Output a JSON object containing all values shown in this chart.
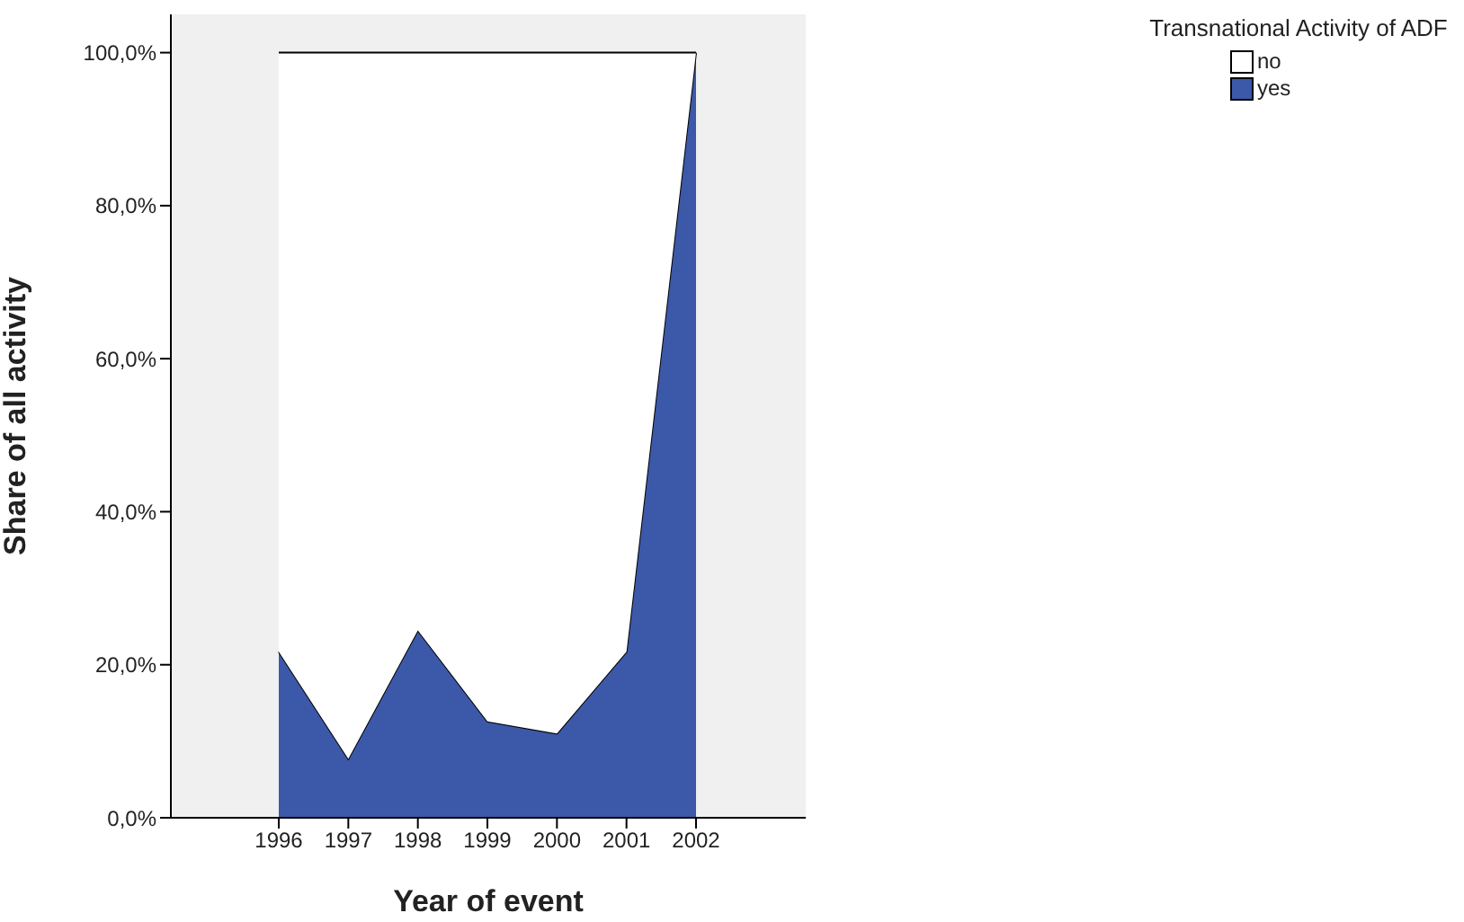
{
  "chart_data": {
    "type": "area",
    "stacked": true,
    "xlabel": "Year of event",
    "ylabel": "Share of all activity",
    "legend_title": "Transnational Activity of ADF",
    "categories": [
      "1996",
      "1997",
      "1998",
      "1999",
      "2000",
      "2001",
      "2002"
    ],
    "series": [
      {
        "name": "yes",
        "color": "#3c58a8",
        "values": [
          21.7,
          7.7,
          24.5,
          12.6,
          11.0,
          21.7,
          100
        ]
      },
      {
        "name": "no",
        "color": "#ffffff",
        "values": [
          78.3,
          92.3,
          75.5,
          87.4,
          89.0,
          78.3,
          0
        ]
      }
    ],
    "ylim": [
      0,
      105
    ],
    "yticks": [
      {
        "value": 0,
        "label": "0,0%"
      },
      {
        "value": 20,
        "label": "20,0%"
      },
      {
        "value": 40,
        "label": "40,0%"
      },
      {
        "value": 60,
        "label": "60,0%"
      },
      {
        "value": 80,
        "label": "80,0%"
      },
      {
        "value": 100,
        "label": "100,0%"
      }
    ],
    "grid": false,
    "legend": "top right"
  }
}
